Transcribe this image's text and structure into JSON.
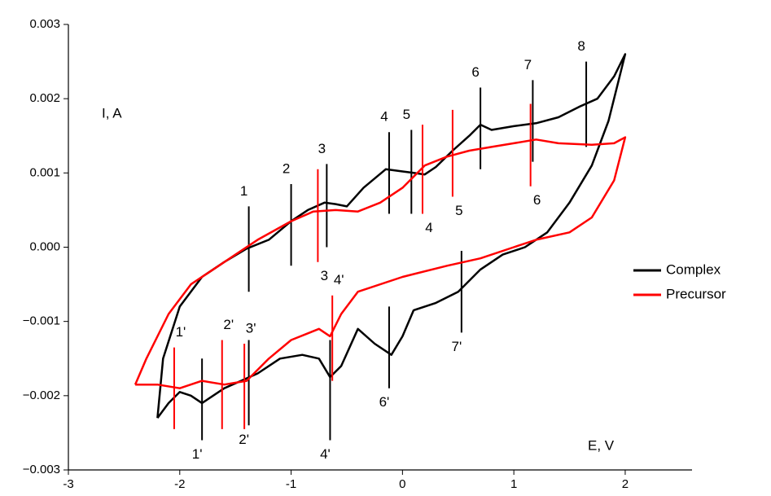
{
  "chart_data": {
    "type": "line",
    "x_label": "E, V",
    "y_label": "I, A",
    "xlim": [
      -3,
      2.6
    ],
    "ylim": [
      -0.003,
      0.003
    ],
    "xticks": [
      -3,
      -2,
      -1,
      0,
      1,
      2
    ],
    "yticks": [
      {
        "value": -0.003,
        "label": "−0.003"
      },
      {
        "value": -0.002,
        "label": "−0.002"
      },
      {
        "value": -0.001,
        "label": "−0.001"
      },
      {
        "value": 0,
        "label": "0.000"
      },
      0.001,
      0.002,
      0.003
    ],
    "legend": "right",
    "series": [
      {
        "name": "Complex",
        "color": "#000000",
        "x": [
          -2.2,
          -2.15,
          -2.0,
          -1.8,
          -1.6,
          -1.4,
          -1.2,
          -1.0,
          -0.85,
          -0.7,
          -0.6,
          -0.5,
          -0.35,
          -0.15,
          0.0,
          0.1,
          0.2,
          0.3,
          0.45,
          0.6,
          0.7,
          0.8,
          1.0,
          1.2,
          1.4,
          1.6,
          1.75,
          1.9,
          2.0,
          1.85,
          1.7,
          1.5,
          1.3,
          1.1,
          0.9,
          0.7,
          0.5,
          0.3,
          0.1,
          0.0,
          -0.1,
          -0.25,
          -0.4,
          -0.55,
          -0.65,
          -0.75,
          -0.9,
          -1.1,
          -1.3,
          -1.45,
          -1.6,
          -1.8,
          -1.9,
          -2.0,
          -2.1,
          -2.2
        ],
        "values": [
          -0.0023,
          -0.0015,
          -0.0008,
          -0.0004,
          -0.0002,
          -2e-05,
          0.0001,
          0.00035,
          0.0005,
          0.0006,
          0.00058,
          0.00055,
          0.0008,
          0.00105,
          0.00102,
          0.001,
          0.00098,
          0.00108,
          0.0013,
          0.0015,
          0.00165,
          0.00158,
          0.00163,
          0.00167,
          0.00175,
          0.0019,
          0.002,
          0.0023,
          0.0026,
          0.0017,
          0.0011,
          0.0006,
          0.0002,
          0.0,
          -0.0001,
          -0.0003,
          -0.0006,
          -0.00075,
          -0.00085,
          -0.0012,
          -0.00145,
          -0.0013,
          -0.0011,
          -0.0016,
          -0.00175,
          -0.0015,
          -0.00145,
          -0.0015,
          -0.0017,
          -0.0018,
          -0.0019,
          -0.0021,
          -0.002,
          -0.00195,
          -0.0021,
          -0.0023
        ],
        "markers": [
          {
            "label": "1",
            "x": -1.38,
            "y1": -0.0006,
            "y2": 0.00055,
            "label_at": "top"
          },
          {
            "label": "2",
            "x": -1.0,
            "y1": -0.00025,
            "y2": 0.00085,
            "label_at": "top"
          },
          {
            "label": "3",
            "x": -0.68,
            "y1": 0.0,
            "y2": 0.00112,
            "label_at": "top"
          },
          {
            "label": "4",
            "x": -0.12,
            "y1": 0.00045,
            "y2": 0.00155,
            "label_at": "top"
          },
          {
            "label": "5",
            "x": 0.08,
            "y1": 0.00045,
            "y2": 0.00158,
            "label_at": "top"
          },
          {
            "label": "6",
            "x": 0.7,
            "y1": 0.00105,
            "y2": 0.00215,
            "label_at": "top"
          },
          {
            "label": "7",
            "x": 1.17,
            "y1": 0.00115,
            "y2": 0.00225,
            "label_at": "top"
          },
          {
            "label": "8",
            "x": 1.65,
            "y1": 0.00135,
            "y2": 0.0025,
            "label_at": "top"
          },
          {
            "label": "1'",
            "x": -1.8,
            "y1": -0.0026,
            "y2": -0.0015,
            "label_at": "bottom"
          },
          {
            "label": "2'",
            "x": -1.38,
            "y1": -0.0024,
            "y2": -0.00125,
            "label_at": "bottom"
          },
          {
            "label": "4'",
            "x": -0.65,
            "y1": -0.0026,
            "y2": -0.00125,
            "label_at": "bottom"
          },
          {
            "label": "6'",
            "x": -0.12,
            "y1": -0.0019,
            "y2": -0.0008,
            "label_at": "bottom"
          },
          {
            "label": "7'",
            "x": 0.53,
            "y1": -0.00115,
            "y2": -5e-05,
            "label_at": "bottom"
          }
        ]
      },
      {
        "name": "Precursor",
        "color": "#ff0000",
        "x": [
          -2.4,
          -2.3,
          -2.1,
          -1.9,
          -1.7,
          -1.5,
          -1.3,
          -1.0,
          -0.8,
          -0.6,
          -0.4,
          -0.2,
          0.0,
          0.2,
          0.4,
          0.6,
          0.8,
          1.0,
          1.2,
          1.4,
          1.7,
          1.9,
          2.0,
          1.9,
          1.7,
          1.5,
          1.2,
          1.0,
          0.7,
          0.4,
          0.0,
          -0.4,
          -0.55,
          -0.65,
          -0.75,
          -1.0,
          -1.2,
          -1.4,
          -1.6,
          -1.8,
          -2.0,
          -2.2,
          -2.4
        ],
        "values": [
          -0.00185,
          -0.0015,
          -0.0009,
          -0.0005,
          -0.0003,
          -0.0001,
          0.0001,
          0.00035,
          0.00048,
          0.0005,
          0.00048,
          0.0006,
          0.0008,
          0.0011,
          0.00122,
          0.0013,
          0.00135,
          0.0014,
          0.00145,
          0.0014,
          0.00138,
          0.0014,
          0.00148,
          0.0009,
          0.0004,
          0.0002,
          0.0001,
          0.0,
          -0.00015,
          -0.00025,
          -0.0004,
          -0.0006,
          -0.0009,
          -0.0012,
          -0.0011,
          -0.00125,
          -0.0015,
          -0.0018,
          -0.00185,
          -0.0018,
          -0.0019,
          -0.00185,
          -0.00185
        ],
        "markers": [
          {
            "label": "3",
            "x": -0.76,
            "y1": -0.0002,
            "y2": 0.00105,
            "label_at": "bottom"
          },
          {
            "label": "4",
            "x": 0.18,
            "y1": 0.00045,
            "y2": 0.00165,
            "label_at": "bottom"
          },
          {
            "label": "5",
            "x": 0.45,
            "y1": 0.00068,
            "y2": 0.00185,
            "label_at": "bottom"
          },
          {
            "label": "6",
            "x": 1.15,
            "y1": 0.00082,
            "y2": 0.00193,
            "label_at": "bottom"
          },
          {
            "label": "1'",
            "x": -2.05,
            "y1": -0.00245,
            "y2": -0.00135,
            "label_at": "top"
          },
          {
            "label": "2'",
            "x": -1.62,
            "y1": -0.00245,
            "y2": -0.00125,
            "label_at": "top"
          },
          {
            "label": "3'",
            "x": -1.42,
            "y1": -0.00245,
            "y2": -0.0013,
            "label_at": "top"
          },
          {
            "label": "4'",
            "x": -0.63,
            "y1": -0.0018,
            "y2": -0.00065,
            "label_at": "top"
          }
        ]
      }
    ]
  }
}
